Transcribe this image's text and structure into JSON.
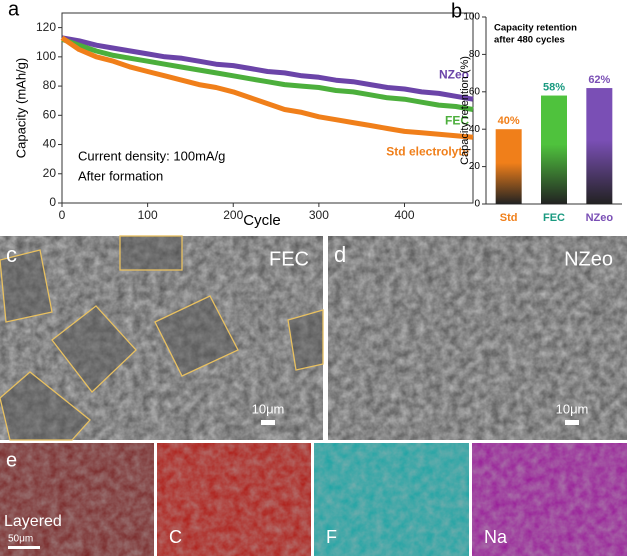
{
  "chart_data": [
    {
      "type": "line",
      "panel": "a",
      "ylabel": "Capacity (mAh/g)",
      "xlabel": "Cycle",
      "annotations": [
        "Current density: 100mA/g",
        "After formation"
      ],
      "x": [
        0,
        20,
        40,
        60,
        80,
        100,
        120,
        140,
        160,
        180,
        200,
        220,
        240,
        260,
        280,
        300,
        320,
        340,
        360,
        380,
        400,
        420,
        440,
        460,
        480
      ],
      "xlim": [
        0,
        480
      ],
      "xticks": [
        0,
        100,
        200,
        300,
        400
      ],
      "ylim": [
        0,
        130
      ],
      "yticks": [
        0,
        20,
        40,
        60,
        80,
        100,
        120
      ],
      "series": [
        {
          "name": "NZeo",
          "color": "#6b44a8",
          "values": [
            113,
            111,
            108,
            106,
            104,
            102,
            100,
            99,
            97,
            95,
            94,
            92,
            90,
            89,
            87,
            86,
            84,
            83,
            81,
            79,
            78,
            76,
            75,
            73,
            71
          ]
        },
        {
          "name": "FEC",
          "color": "#4caf3c",
          "values": [
            112,
            108,
            104,
            101,
            99,
            97,
            95,
            93,
            91,
            89,
            87,
            85,
            83,
            81,
            80,
            79,
            77,
            76,
            74,
            72,
            71,
            69,
            67,
            66,
            64
          ]
        },
        {
          "name": "Std electrolyte",
          "color": "#f07f1a",
          "values": [
            113,
            105,
            100,
            97,
            93,
            90,
            87,
            84,
            81,
            79,
            76,
            72,
            68,
            64,
            62,
            59,
            57,
            55,
            53,
            51,
            49,
            48,
            47,
            46,
            45
          ]
        }
      ]
    },
    {
      "type": "bar",
      "panel": "b",
      "title": [
        "Capacity retention",
        "after 480 cycles"
      ],
      "ylabel": "Capacity retention (%)",
      "categories": [
        "Std",
        "FEC",
        "NZeo"
      ],
      "values": [
        40,
        58,
        62
      ],
      "value_labels": [
        "40%",
        "58%",
        "62%"
      ],
      "colors": [
        "#f07f1a",
        "#4fc23d",
        "#7a4fb5"
      ],
      "label_colors": [
        "#f07f1a",
        "#1a9a80",
        "#7a4fb5"
      ],
      "ylim": [
        0,
        100
      ],
      "yticks": [
        0,
        20,
        40,
        60,
        80,
        100
      ]
    }
  ],
  "images": [
    {
      "panel": "c",
      "label": "FEC",
      "scale": "10μm"
    },
    {
      "panel": "d",
      "label": "NZeo",
      "scale": "10μm"
    }
  ],
  "maps": {
    "panel": "e",
    "scale": "50μm",
    "labels": [
      "Layered",
      "C",
      "F",
      "Na"
    ]
  }
}
